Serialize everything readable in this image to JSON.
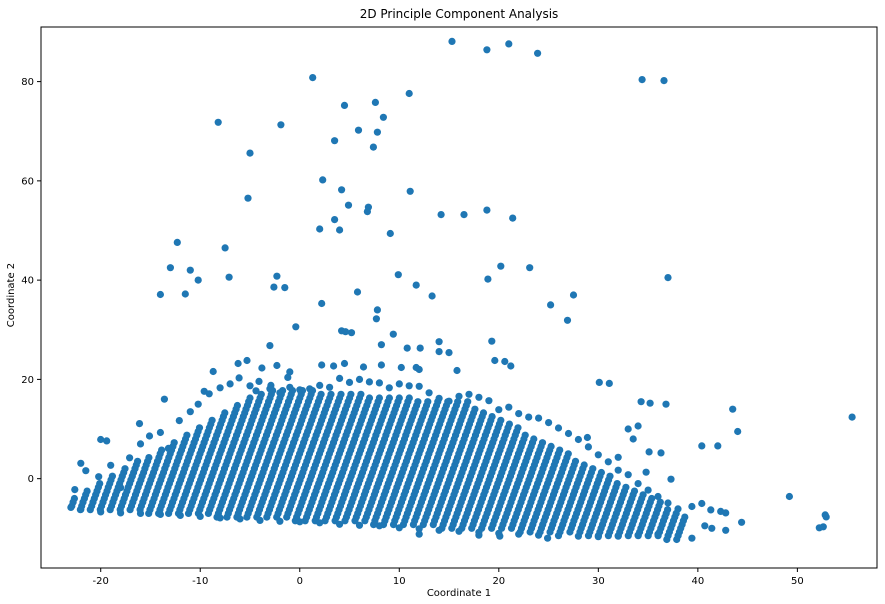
{
  "chart_data": {
    "type": "scatter",
    "title": "2D Principle Component Analysis",
    "xlabel": "Coordinate 1",
    "ylabel": "Coordinate 2",
    "xlim": [
      -26,
      58
    ],
    "ylim": [
      -18,
      91
    ],
    "xticks": [
      -20,
      -10,
      0,
      10,
      20,
      30,
      40,
      50
    ],
    "yticks": [
      0,
      20,
      40,
      60,
      80
    ],
    "grid": false,
    "legend": "none",
    "colors": {
      "marker": "#1f77b4",
      "axes": "#000000",
      "background": "#ffffff"
    },
    "marker": "circle",
    "series": [
      {
        "points": [
          [
            15.3,
            88.1
          ],
          [
            18.8,
            86.4
          ],
          [
            21.0,
            87.6
          ],
          [
            23.9,
            85.7
          ],
          [
            1.3,
            80.8
          ],
          [
            34.4,
            80.4
          ],
          [
            36.6,
            80.2
          ],
          [
            11.0,
            77.6
          ],
          [
            4.5,
            75.2
          ],
          [
            7.6,
            75.8
          ],
          [
            -8.2,
            71.8
          ],
          [
            -1.9,
            71.3
          ],
          [
            8.4,
            72.8
          ],
          [
            5.9,
            70.2
          ],
          [
            7.8,
            69.8
          ],
          [
            3.5,
            68.1
          ],
          [
            7.4,
            66.8
          ],
          [
            -5.0,
            65.6
          ],
          [
            -5.2,
            56.5
          ],
          [
            2.3,
            60.2
          ],
          [
            4.2,
            58.2
          ],
          [
            11.1,
            57.9
          ],
          [
            4.9,
            55.1
          ],
          [
            6.9,
            54.7
          ],
          [
            6.8,
            53.8
          ],
          [
            14.2,
            53.2
          ],
          [
            16.5,
            53.2
          ],
          [
            18.8,
            54.1
          ],
          [
            21.4,
            52.5
          ],
          [
            3.5,
            52.2
          ],
          [
            2.0,
            50.3
          ],
          [
            4.0,
            50.1
          ],
          [
            9.1,
            49.4
          ],
          [
            -12.3,
            47.6
          ],
          [
            -7.5,
            46.5
          ],
          [
            -13.0,
            42.5
          ],
          [
            -11.0,
            42.0
          ],
          [
            -10.2,
            40.0
          ],
          [
            -7.1,
            40.6
          ],
          [
            -2.3,
            40.8
          ],
          [
            20.2,
            42.8
          ],
          [
            23.1,
            42.5
          ],
          [
            9.9,
            41.1
          ],
          [
            -14.0,
            37.1
          ],
          [
            -11.5,
            37.2
          ],
          [
            -2.6,
            38.6
          ],
          [
            -1.5,
            38.5
          ],
          [
            5.8,
            37.6
          ],
          [
            11.7,
            39.0
          ],
          [
            13.3,
            36.8
          ],
          [
            18.9,
            40.2
          ],
          [
            27.5,
            37.0
          ],
          [
            37.0,
            40.5
          ],
          [
            25.2,
            35.0
          ],
          [
            2.2,
            35.3
          ],
          [
            7.8,
            34.0
          ],
          [
            26.9,
            31.9
          ],
          [
            -0.4,
            30.6
          ],
          [
            4.2,
            29.8
          ],
          [
            5.2,
            29.4
          ],
          [
            4.6,
            29.6
          ],
          [
            7.7,
            32.2
          ],
          [
            9.4,
            29.1
          ],
          [
            -3.0,
            26.8
          ],
          [
            8.2,
            27.0
          ],
          [
            10.8,
            26.3
          ],
          [
            12.1,
            26.3
          ],
          [
            14.0,
            27.6
          ],
          [
            14.0,
            25.6
          ],
          [
            15.0,
            25.4
          ],
          [
            19.3,
            27.7
          ],
          [
            -8.7,
            21.6
          ],
          [
            -6.2,
            23.2
          ],
          [
            -5.3,
            23.8
          ],
          [
            -2.3,
            22.8
          ],
          [
            -3.8,
            22.3
          ],
          [
            -1.0,
            21.5
          ],
          [
            2.2,
            22.9
          ],
          [
            3.4,
            22.7
          ],
          [
            4.5,
            23.2
          ],
          [
            6.4,
            22.5
          ],
          [
            8.2,
            22.9
          ],
          [
            10.2,
            22.4
          ],
          [
            12.0,
            22.0
          ],
          [
            19.6,
            23.8
          ],
          [
            20.6,
            23.6
          ],
          [
            21.2,
            22.7
          ],
          [
            -1.2,
            20.4
          ],
          [
            11.7,
            22.4
          ],
          [
            15.8,
            21.8
          ],
          [
            -13.6,
            16.0
          ],
          [
            -9.6,
            17.6
          ],
          [
            -2.9,
            18.8
          ],
          [
            -4.4,
            17.7
          ],
          [
            34.3,
            15.5
          ],
          [
            35.2,
            15.2
          ],
          [
            36.8,
            15.0
          ],
          [
            30.1,
            19.4
          ],
          [
            31.1,
            19.2
          ],
          [
            43.5,
            14.0
          ],
          [
            55.5,
            12.4
          ],
          [
            40.4,
            6.6
          ],
          [
            42.0,
            6.6
          ],
          [
            44.0,
            9.5
          ],
          [
            49.2,
            -3.6
          ],
          [
            52.2,
            -9.9
          ],
          [
            52.6,
            -9.7
          ],
          [
            52.8,
            -7.3
          ],
          [
            52.9,
            -7.7
          ],
          [
            28.9,
            8.3
          ],
          [
            33.0,
            10.0
          ],
          [
            34.0,
            10.6
          ],
          [
            33.5,
            8.0
          ],
          [
            35.1,
            5.4
          ],
          [
            36.3,
            5.2
          ],
          [
            32.0,
            4.3
          ],
          [
            34.8,
            1.3
          ],
          [
            37.3,
            -0.1
          ],
          [
            39.4,
            -5.6
          ],
          [
            40.4,
            -5.0
          ],
          [
            41.3,
            -6.3
          ],
          [
            42.3,
            -6.6
          ],
          [
            42.8,
            -6.9
          ],
          [
            44.4,
            -8.8
          ],
          [
            40.7,
            -9.5
          ],
          [
            41.4,
            -10.0
          ],
          [
            42.8,
            -10.4
          ],
          [
            39.4,
            -12.0
          ],
          [
            24.9,
            -12.0
          ],
          [
            20.1,
            -11.6
          ],
          [
            18.0,
            -11.4
          ],
          [
            12.0,
            -11.2
          ],
          [
            -20.0,
            7.9
          ],
          [
            -19.4,
            7.6
          ],
          [
            -16.1,
            11.1
          ],
          [
            -22.0,
            3.1
          ],
          [
            -23.0,
            -5.8
          ],
          [
            -22.6,
            -2.2
          ],
          [
            -21.5,
            1.6
          ],
          [
            -20.2,
            0.4
          ],
          [
            -19.0,
            2.7
          ],
          [
            -18.0,
            -1.8
          ],
          [
            -17.1,
            4.2
          ],
          [
            -16.0,
            7.0
          ],
          [
            -15.1,
            8.6
          ],
          [
            -14.0,
            9.3
          ],
          [
            -13.2,
            6.1
          ],
          [
            -12.1,
            11.7
          ],
          [
            -11.0,
            13.5
          ],
          [
            -10.2,
            15.0
          ],
          [
            -9.1,
            17.1
          ],
          [
            -8.0,
            18.3
          ],
          [
            -7.0,
            19.1
          ],
          [
            -6.1,
            20.3
          ],
          [
            -5.0,
            18.7
          ],
          [
            -4.1,
            19.6
          ],
          [
            -3.0,
            18.1
          ],
          [
            -2.0,
            17.3
          ],
          [
            -1.0,
            18.4
          ],
          [
            0.0,
            17.9
          ],
          [
            1.0,
            18.1
          ],
          [
            2.0,
            18.8
          ],
          [
            3.0,
            18.4
          ],
          [
            4.0,
            20.2
          ],
          [
            5.0,
            19.4
          ],
          [
            6.0,
            20.0
          ],
          [
            7.0,
            19.5
          ],
          [
            8.0,
            19.3
          ],
          [
            9.0,
            18.3
          ],
          [
            10.0,
            19.1
          ],
          [
            11.0,
            18.7
          ],
          [
            12.0,
            18.6
          ],
          [
            13.0,
            17.3
          ],
          [
            14.0,
            16.2
          ],
          [
            15.0,
            15.6
          ],
          [
            16.0,
            16.6
          ],
          [
            17.0,
            17.0
          ],
          [
            18.0,
            16.4
          ],
          [
            19.0,
            15.7
          ],
          [
            20.0,
            13.9
          ],
          [
            21.0,
            14.4
          ],
          [
            22.0,
            13.1
          ],
          [
            23.0,
            12.4
          ],
          [
            24.0,
            12.2
          ],
          [
            25.0,
            11.3
          ],
          [
            26.0,
            10.2
          ],
          [
            27.0,
            9.1
          ],
          [
            28.0,
            7.9
          ],
          [
            29.0,
            6.4
          ],
          [
            30.0,
            4.8
          ],
          [
            31.0,
            3.4
          ],
          [
            32.0,
            1.7
          ],
          [
            33.0,
            0.8
          ],
          [
            34.0,
            -1.0
          ],
          [
            35.0,
            -2.3
          ],
          [
            36.0,
            -3.6
          ],
          [
            37.0,
            -4.9
          ],
          [
            38.0,
            -6.1
          ],
          [
            -22.0,
            -6.2
          ],
          [
            -20.0,
            -6.7
          ],
          [
            -18.0,
            -6.9
          ],
          [
            -16.0,
            -7.0
          ],
          [
            -14.0,
            -7.2
          ],
          [
            -12.0,
            -7.4
          ],
          [
            -10.0,
            -7.6
          ],
          [
            -8.0,
            -7.9
          ],
          [
            -6.0,
            -8.1
          ],
          [
            -4.0,
            -8.4
          ],
          [
            -2.0,
            -8.6
          ],
          [
            0.0,
            -8.7
          ],
          [
            2.0,
            -8.9
          ],
          [
            4.0,
            -9.2
          ],
          [
            6.0,
            -9.4
          ],
          [
            8.0,
            -9.5
          ],
          [
            10.0,
            -9.9
          ],
          [
            12.0,
            -10.1
          ],
          [
            14.0,
            -10.4
          ],
          [
            16.0,
            -10.6
          ],
          [
            18.0,
            -10.8
          ],
          [
            20.0,
            -11.0
          ],
          [
            22.0,
            -11.2
          ],
          [
            24.0,
            -11.4
          ],
          [
            26.0,
            -11.5
          ],
          [
            28.0,
            -11.6
          ],
          [
            30.0,
            -11.7
          ],
          [
            32.0,
            -11.6
          ],
          [
            34.0,
            -11.4
          ],
          [
            36.0,
            -11.2
          ]
        ]
      }
    ]
  }
}
